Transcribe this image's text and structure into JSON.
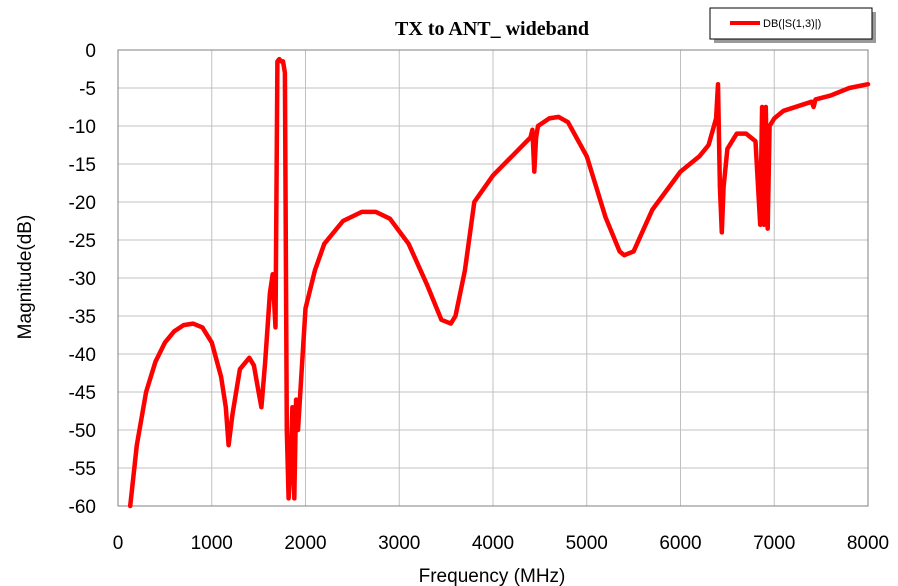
{
  "chart_data": {
    "type": "line",
    "title": "TX to ANT_ wideband",
    "xlabel": "Frequency (MHz)",
    "ylabel": "Magnitude(dB)",
    "xlim": [
      0,
      8000
    ],
    "ylim": [
      -60,
      0
    ],
    "xticks": [
      "0",
      "1000",
      "2000",
      "3000",
      "4000",
      "5000",
      "6000",
      "7000",
      "8000"
    ],
    "yticks": [
      "0",
      "-5",
      "-10",
      "-15",
      "-20",
      "-25",
      "-30",
      "-35",
      "-40",
      "-45",
      "-50",
      "-55",
      "-60"
    ],
    "xtick_values": [
      0,
      1000,
      2000,
      3000,
      4000,
      5000,
      6000,
      7000,
      8000
    ],
    "ytick_values": [
      0,
      -5,
      -10,
      -15,
      -20,
      -25,
      -30,
      -35,
      -40,
      -45,
      -50,
      -55,
      -60
    ],
    "grid": true,
    "legend_position": "top-right",
    "series_color": "#ff0000",
    "series": [
      {
        "name": "DB(|S(1,3)|)",
        "x": [
          130,
          200,
          300,
          400,
          500,
          600,
          700,
          800,
          900,
          1000,
          1100,
          1150,
          1180,
          1220,
          1300,
          1400,
          1450,
          1500,
          1530,
          1570,
          1620,
          1650,
          1680,
          1700,
          1720,
          1740,
          1760,
          1780,
          1800,
          1820,
          1840,
          1860,
          1880,
          1900,
          1920,
          2000,
          2100,
          2200,
          2400,
          2600,
          2750,
          2900,
          3100,
          3300,
          3450,
          3550,
          3600,
          3700,
          3800,
          4000,
          4200,
          4400,
          4420,
          4440,
          4460,
          4480,
          4600,
          4700,
          4800,
          5000,
          5200,
          5350,
          5400,
          5500,
          5700,
          6000,
          6200,
          6300,
          6380,
          6400,
          6420,
          6440,
          6460,
          6500,
          6600,
          6700,
          6800,
          6850,
          6870,
          6890,
          6910,
          6930,
          6950,
          7000,
          7100,
          7400,
          7420,
          7440,
          7600,
          7800,
          8000
        ],
        "y": [
          -60,
          -52,
          -45,
          -41,
          -38.5,
          -37,
          -36.2,
          -36,
          -36.5,
          -38.5,
          -43,
          -47,
          -52,
          -48,
          -42,
          -40.5,
          -41.5,
          -45,
          -47,
          -41,
          -32,
          -29.5,
          -36.5,
          -1.5,
          -1.2,
          -1.5,
          -1.5,
          -3,
          -50,
          -59,
          -55,
          -47,
          -59,
          -46,
          -50,
          -34,
          -29,
          -25.5,
          -22.5,
          -21.3,
          -21.3,
          -22.2,
          -25.5,
          -31,
          -35.5,
          -36,
          -35,
          -29,
          -20,
          -16.5,
          -14,
          -11.5,
          -10.5,
          -16,
          -11.5,
          -10,
          -9,
          -8.8,
          -9.5,
          -14,
          -22,
          -26.5,
          -27,
          -26.5,
          -21,
          -16,
          -14,
          -12.5,
          -9,
          -4.5,
          -18,
          -24,
          -18,
          -13,
          -11,
          -11,
          -12,
          -23,
          -7.5,
          -23,
          -7.5,
          -23.5,
          -10,
          -9,
          -8,
          -6.8,
          -7.5,
          -6.5,
          -6,
          -5,
          -4.5
        ]
      }
    ]
  }
}
